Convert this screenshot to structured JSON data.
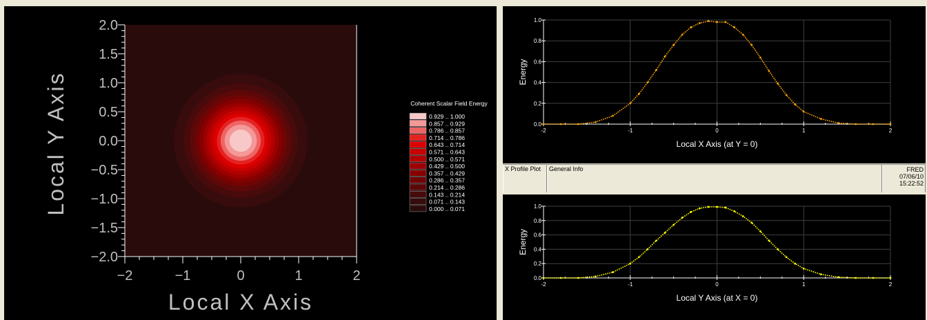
{
  "left_plot": {
    "xlabel": "Local X Axis",
    "ylabel": "Local Y Axis",
    "x_ticks": [
      "−2",
      "−1",
      "0",
      "1",
      "2"
    ],
    "y_ticks": [
      "2.0",
      "1.5",
      "1.0",
      "0.5",
      "0.0",
      "−0.5",
      "−1.0",
      "−1.5",
      "−2.0"
    ],
    "legend_title": "Coherent Scalar Field Energy",
    "legend_items": [
      {
        "label": "0.929 .. 1.000",
        "color": "#f8c8c8"
      },
      {
        "label": "0.857 .. 0.929",
        "color": "#f49898"
      },
      {
        "label": "0.786 .. 0.857",
        "color": "#ee6464"
      },
      {
        "label": "0.714 .. 0.786",
        "color": "#e52222"
      },
      {
        "label": "0.643 .. 0.714",
        "color": "#dd0000"
      },
      {
        "label": "0.571 .. 0.643",
        "color": "#c80000"
      },
      {
        "label": "0.500 .. 0.571",
        "color": "#b20000"
      },
      {
        "label": "0.429 .. 0.500",
        "color": "#9c0000"
      },
      {
        "label": "0.357 .. 0.429",
        "color": "#860000"
      },
      {
        "label": "0.286 .. 0.357",
        "color": "#700404"
      },
      {
        "label": "0.214 .. 0.286",
        "color": "#5c0808"
      },
      {
        "label": "0.143 .. 0.214",
        "color": "#480a0a"
      },
      {
        "label": "0.071 .. 0.143",
        "color": "#380c0c"
      },
      {
        "label": "0.000 .. 0.071",
        "color": "#2a0b0b"
      }
    ]
  },
  "top_plot": {
    "ylabel": "Energy",
    "xlabel": "Local X Axis (at Y = 0)",
    "x_ticks": [
      "-2",
      "-1",
      "0",
      "1",
      "2"
    ],
    "y_ticks": [
      "1.0",
      "0.8",
      "0.6",
      "0.4",
      "0.2",
      "0.0"
    ],
    "line_color": "#ffa500"
  },
  "bottom_plot": {
    "ylabel": "Energy",
    "xlabel": "Local Y Axis (at X = 0)",
    "x_ticks": [
      "-2",
      "-1",
      "0",
      "1",
      "2"
    ],
    "y_ticks": [
      "1.0",
      "0.8",
      "0.6",
      "0.4",
      "0.2",
      "0.0"
    ],
    "line_color": "#ffff00"
  },
  "status": {
    "plot_name": "X Profile Plot",
    "info": "General Info",
    "app": "FRED",
    "date": "07/06/10",
    "time": "15:22:52"
  },
  "chart_data": [
    {
      "type": "heatmap",
      "title": "",
      "xlabel": "Local X Axis",
      "ylabel": "Local Y Axis",
      "xlim": [
        -2,
        2
      ],
      "ylim": [
        -2,
        2
      ],
      "levels": [
        0.0,
        0.071,
        0.143,
        0.214,
        0.286,
        0.357,
        0.429,
        0.5,
        0.571,
        0.643,
        0.714,
        0.786,
        0.857,
        0.929,
        1.0
      ],
      "peak": {
        "x": 0,
        "y": 0,
        "value": 1.0
      }
    },
    {
      "type": "line",
      "title": "",
      "xlabel": "Local X Axis (at Y = 0)",
      "ylabel": "Energy",
      "xlim": [
        -2,
        2
      ],
      "ylim": [
        0,
        1
      ],
      "x": [
        -2,
        -1.8,
        -1.6,
        -1.4,
        -1.2,
        -1.0,
        -0.9,
        -0.8,
        -0.7,
        -0.6,
        -0.5,
        -0.4,
        -0.3,
        -0.2,
        -0.1,
        0.0,
        0.1,
        0.2,
        0.3,
        0.4,
        0.5,
        0.6,
        0.7,
        0.8,
        0.9,
        1.0,
        1.2,
        1.4,
        1.6,
        1.8,
        2.0
      ],
      "y": [
        0.0,
        0.0,
        0.0,
        0.02,
        0.08,
        0.2,
        0.29,
        0.4,
        0.52,
        0.65,
        0.76,
        0.86,
        0.93,
        0.97,
        0.99,
        0.98,
        0.98,
        0.93,
        0.86,
        0.76,
        0.64,
        0.51,
        0.39,
        0.28,
        0.19,
        0.12,
        0.05,
        0.01,
        0.0,
        0.0,
        0.0
      ]
    },
    {
      "type": "line",
      "title": "",
      "xlabel": "Local Y Axis (at X = 0)",
      "ylabel": "Energy",
      "xlim": [
        -2,
        2
      ],
      "ylim": [
        0,
        1
      ],
      "x": [
        -2,
        -1.8,
        -1.6,
        -1.4,
        -1.2,
        -1.0,
        -0.9,
        -0.8,
        -0.7,
        -0.6,
        -0.5,
        -0.4,
        -0.3,
        -0.2,
        -0.1,
        0.0,
        0.1,
        0.2,
        0.3,
        0.4,
        0.5,
        0.6,
        0.7,
        0.8,
        0.9,
        1.0,
        1.2,
        1.4,
        1.6,
        1.8,
        2.0
      ],
      "y": [
        0.0,
        0.0,
        0.0,
        0.02,
        0.08,
        0.2,
        0.29,
        0.4,
        0.52,
        0.63,
        0.74,
        0.84,
        0.92,
        0.97,
        0.99,
        0.99,
        0.98,
        0.93,
        0.86,
        0.77,
        0.65,
        0.52,
        0.4,
        0.29,
        0.2,
        0.13,
        0.05,
        0.01,
        0.0,
        0.0,
        0.0
      ]
    }
  ]
}
